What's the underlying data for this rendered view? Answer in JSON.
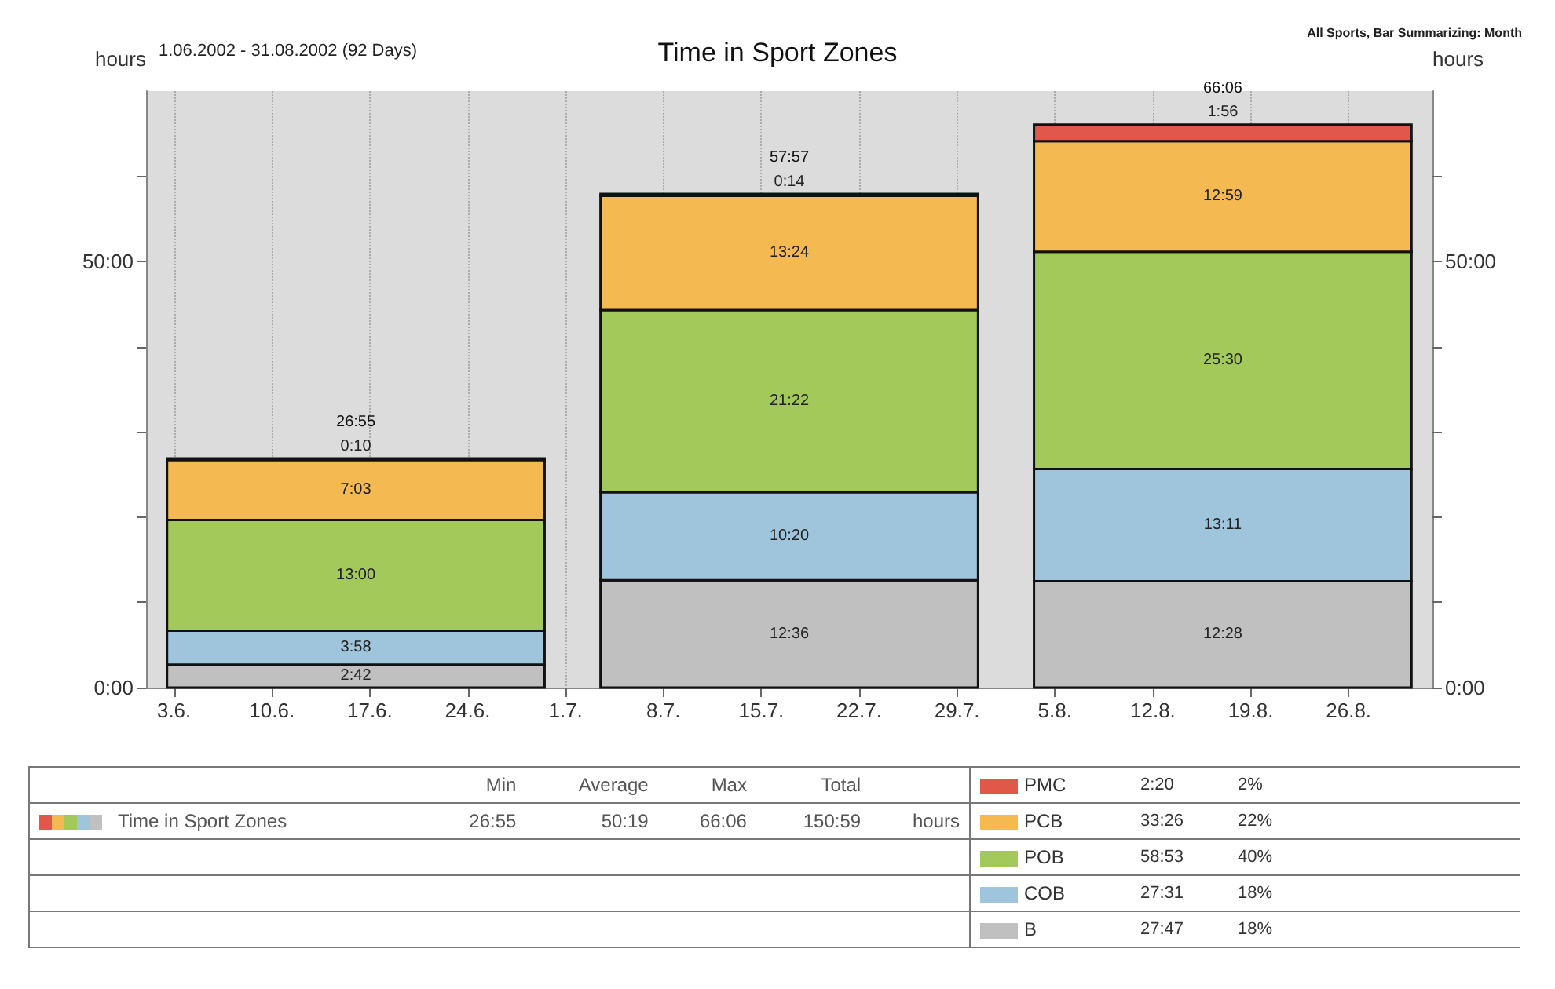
{
  "chart_data": {
    "type": "bar",
    "title": "Time in Sport Zones",
    "subtitle": "1.06.2002 - 31.08.2002 (92 Days)",
    "ylabel": "hours",
    "y2label": "hours",
    "stacked": true,
    "x": [
      "2002-06-16",
      "2002-07-17",
      "2002-08-17"
    ],
    "xlim": [
      "2002-06-01",
      "2002-09-01"
    ],
    "xticks": [
      {
        "value": "2002-06-03",
        "label": "3.6."
      },
      {
        "value": "2002-06-10",
        "label": "10.6."
      },
      {
        "value": "2002-06-17",
        "label": "17.6."
      },
      {
        "value": "2002-06-24",
        "label": "24.6."
      },
      {
        "value": "2002-07-01",
        "label": "1.7."
      },
      {
        "value": "2002-07-08",
        "label": "8.7."
      },
      {
        "value": "2002-07-15",
        "label": "15.7."
      },
      {
        "value": "2002-07-22",
        "label": "22.7."
      },
      {
        "value": "2002-07-29",
        "label": "29.7."
      },
      {
        "value": "2002-08-05",
        "label": "5.8."
      },
      {
        "value": "2002-08-12",
        "label": "12.8."
      },
      {
        "value": "2002-08-19",
        "label": "19.8."
      },
      {
        "value": "2002-08-26",
        "label": "26.8."
      }
    ],
    "ylim": [
      0,
      70
    ],
    "yticks": [
      {
        "value": 0,
        "label": "0:00"
      },
      {
        "value": 10,
        "label": null
      },
      {
        "value": 20,
        "label": null
      },
      {
        "value": 30,
        "label": null
      },
      {
        "value": 40,
        "label": null
      },
      {
        "value": 50,
        "label": "50:00"
      },
      {
        "value": 60,
        "label": null
      }
    ],
    "y2lim": [
      0,
      70
    ],
    "y2ticks": [
      {
        "value": 0,
        "label": "0:00"
      },
      {
        "value": 10,
        "label": null
      },
      {
        "value": 20,
        "label": null
      },
      {
        "value": 30,
        "label": null
      },
      {
        "value": 40,
        "label": null
      },
      {
        "value": 50,
        "label": "50:00"
      },
      {
        "value": 60,
        "label": null
      }
    ],
    "series": [
      {
        "name": "B",
        "color": "#c0c0c0",
        "values": [
          2.7,
          12.6,
          12.47
        ],
        "value_labels": [
          "2:42",
          "12:36",
          "12:28"
        ]
      },
      {
        "name": "COB",
        "color": "#9fc5dc",
        "values": [
          3.97,
          10.33,
          13.18
        ],
        "value_labels": [
          "3:58",
          "10:20",
          "13:11"
        ]
      },
      {
        "name": "POB",
        "color": "#a3c95a",
        "values": [
          13,
          21.37,
          25.5
        ],
        "value_labels": [
          "13:00",
          "21:22",
          "25:30"
        ]
      },
      {
        "name": "PCB",
        "color": "#f5b952",
        "values": [
          7.05,
          13.4,
          12.98
        ],
        "value_labels": [
          "7:03",
          "13:24",
          "12:59"
        ]
      },
      {
        "name": "PMC",
        "color": "#e0584a",
        "values": [
          0.17,
          0.23,
          1.93
        ],
        "value_labels": [
          "0:10",
          "0:14",
          "1:56"
        ]
      }
    ],
    "totals": [
      "26:55",
      "57:57",
      "66:06"
    ],
    "grid": "x",
    "legend": "bottom",
    "annotations": [
      "All Sports, Bar Summarizing: Month",
      "Min",
      "Average",
      "Max",
      "Total",
      "Time in Sport Zones",
      "26:55",
      "50:19",
      "66:06",
      "150:59",
      "hours",
      "2:20",
      "2%",
      "33:26",
      "22%",
      "58:53",
      "40%",
      "27:31",
      "18%",
      "27:47",
      "18%"
    ]
  }
}
